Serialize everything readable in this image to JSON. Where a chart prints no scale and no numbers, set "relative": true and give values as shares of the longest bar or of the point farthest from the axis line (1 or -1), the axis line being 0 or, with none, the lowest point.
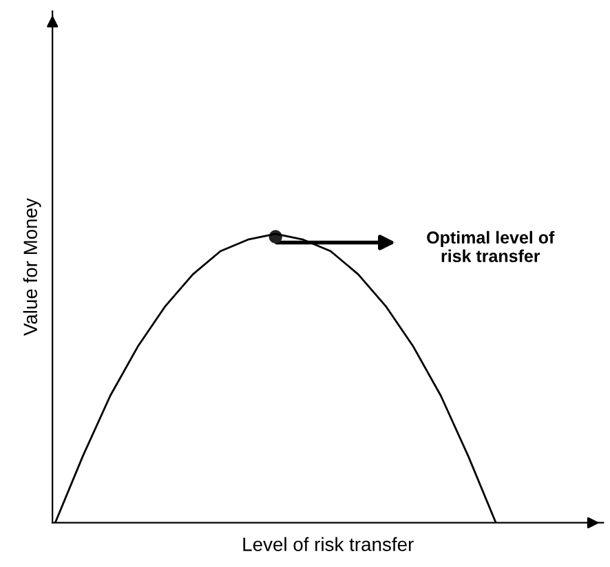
{
  "chart_data": {
    "type": "line",
    "relative": true,
    "xlabel": "Level of risk transfer",
    "ylabel": "Value for Money",
    "categories": [
      null,
      null,
      null,
      null,
      null,
      null,
      null,
      null,
      null,
      null,
      null,
      null,
      null,
      null,
      null,
      null,
      null,
      null,
      null,
      null
    ],
    "series": [
      {
        "color": "#000000",
        "values": [
          0,
          0.23,
          0.44,
          0.61,
          0.75,
          0.86,
          0.94,
          0.98,
          1,
          0.98,
          0.94,
          0.86,
          0.75,
          0.61,
          0.44,
          0.23,
          0,
          null,
          null,
          null
        ]
      }
    ],
    "annotations": [
      "Optimal level of\nrisk transfer"
    ],
    "grid": false,
    "legend": false,
    "marker": "none",
    "line_style": "solid"
  }
}
